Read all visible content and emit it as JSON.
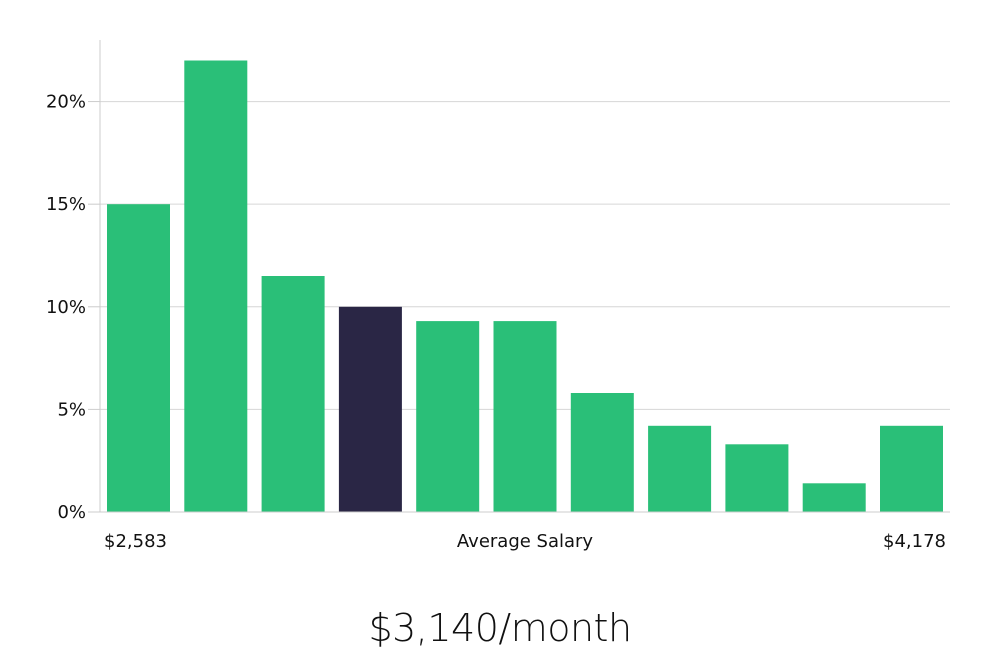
{
  "chart_data": {
    "type": "bar",
    "title": "",
    "xlabel": "Average Salary",
    "ylabel": "",
    "x_min_label": "$2,583",
    "x_max_label": "$4,178",
    "y_ticks": [
      "0%",
      "5%",
      "10%",
      "15%",
      "20%"
    ],
    "y_tick_values": [
      0,
      5,
      10,
      15,
      20
    ],
    "ylim": [
      0,
      23
    ],
    "values": [
      15,
      22,
      11.5,
      10,
      9.3,
      9.3,
      5.8,
      4.2,
      3.3,
      1.4,
      4.2
    ],
    "highlight_index": 3,
    "grid": true,
    "colors": {
      "bar": "#2abf78",
      "highlight": "#2a2645",
      "grid": "#d6d6d6",
      "axis": "#cccccc"
    }
  },
  "summary": {
    "average_salary": "$3,140/month"
  }
}
